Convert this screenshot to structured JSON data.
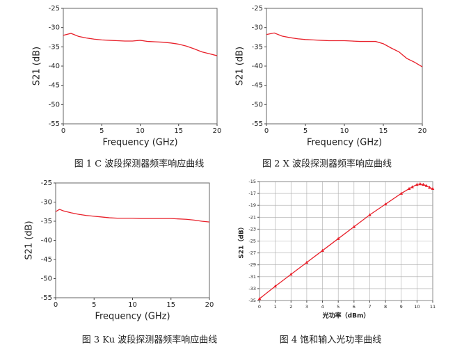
{
  "chart_data": [
    {
      "type": "line",
      "title": "图 1 C 波段探测器频率响应曲线",
      "x_label": "Frequency (GHz)",
      "y_label": "S21 (dB)",
      "x": [
        0,
        1,
        2,
        3,
        4,
        5,
        6,
        7,
        8,
        9,
        10,
        11,
        12,
        13,
        14,
        15,
        16,
        17,
        18,
        19,
        20
      ],
      "values": [
        -32,
        -31.5,
        -32.3,
        -32.7,
        -33,
        -33.2,
        -33.3,
        -33.4,
        -33.5,
        -33.5,
        -33.3,
        -33.6,
        -33.7,
        -33.8,
        -34,
        -34.3,
        -34.8,
        -35.5,
        -36.3,
        -36.8,
        -37.3
      ],
      "color": "#e8202a",
      "xlim": [
        0,
        20
      ],
      "ylim": [
        -55,
        -25
      ],
      "xticks": [
        0,
        5,
        10,
        15,
        20
      ],
      "yticks": [
        -55,
        -50,
        -45,
        -40,
        -35,
        -30,
        -25
      ],
      "grid": false
    },
    {
      "type": "line",
      "title": "图 2 X 波段探测器频率响应曲线",
      "x_label": "Frequency (GHz)",
      "y_label": "S21 (dB)",
      "x": [
        0,
        1,
        2,
        3,
        4,
        5,
        6,
        7,
        8,
        9,
        10,
        11,
        12,
        13,
        14,
        15,
        16,
        17,
        18,
        19,
        20
      ],
      "values": [
        -31.8,
        -31.4,
        -32.2,
        -32.6,
        -32.9,
        -33.1,
        -33.2,
        -33.3,
        -33.4,
        -33.4,
        -33.4,
        -33.5,
        -33.6,
        -33.6,
        -33.6,
        -34.2,
        -35.3,
        -36.3,
        -38,
        -39,
        -40.2
      ],
      "color": "#e8202a",
      "xlim": [
        0,
        20
      ],
      "ylim": [
        -55,
        -25
      ],
      "xticks": [
        0,
        5,
        10,
        15,
        20
      ],
      "yticks": [
        -55,
        -50,
        -45,
        -40,
        -35,
        -30,
        -25
      ],
      "grid": false
    },
    {
      "type": "line",
      "title": "图 3 Ku 波段探测器频率响应曲线",
      "x_label": "Frequency (GHz)",
      "y_label": "S21 (dB)",
      "x": [
        0,
        0.5,
        1,
        2,
        3,
        4,
        5,
        6,
        7,
        8,
        9,
        10,
        11,
        12,
        13,
        14,
        15,
        16,
        17,
        18,
        19,
        20
      ],
      "values": [
        -32.5,
        -31.9,
        -32.3,
        -32.8,
        -33.2,
        -33.5,
        -33.7,
        -33.9,
        -34.1,
        -34.2,
        -34.2,
        -34.2,
        -34.3,
        -34.3,
        -34.3,
        -34.3,
        -34.3,
        -34.4,
        -34.5,
        -34.7,
        -35,
        -35.2
      ],
      "color": "#e8202a",
      "xlim": [
        0,
        20
      ],
      "ylim": [
        -55,
        -25
      ],
      "xticks": [
        0,
        5,
        10,
        15,
        20
      ],
      "yticks": [
        -55,
        -50,
        -45,
        -40,
        -35,
        -30,
        -25
      ],
      "grid": false
    },
    {
      "type": "line",
      "title": "图 4 饱和输入光功率曲线",
      "x_label": "光功率（dBm）",
      "y_label": "S21（dB）",
      "x": [
        0,
        1,
        2,
        3,
        4,
        5,
        6,
        7,
        8,
        9,
        9.5,
        9.7,
        10,
        10.2,
        10.4,
        10.6,
        10.8,
        11
      ],
      "values": [
        -34.7,
        -32.6,
        -30.6,
        -28.6,
        -26.6,
        -24.6,
        -22.6,
        -20.6,
        -18.8,
        -17,
        -16.2,
        -15.9,
        -15.5,
        -15.4,
        -15.5,
        -15.7,
        -16,
        -16.2
      ],
      "color": "#e8202a",
      "markers": true,
      "xlim": [
        0,
        11
      ],
      "ylim": [
        -35,
        -15
      ],
      "xticks": [
        0,
        1,
        2,
        3,
        4,
        5,
        6,
        7,
        8,
        9,
        10,
        11
      ],
      "yticks": [
        -35,
        -33,
        -31,
        -29,
        -27,
        -25,
        -23,
        -21,
        -19,
        -17,
        -15
      ],
      "grid": true
    }
  ]
}
